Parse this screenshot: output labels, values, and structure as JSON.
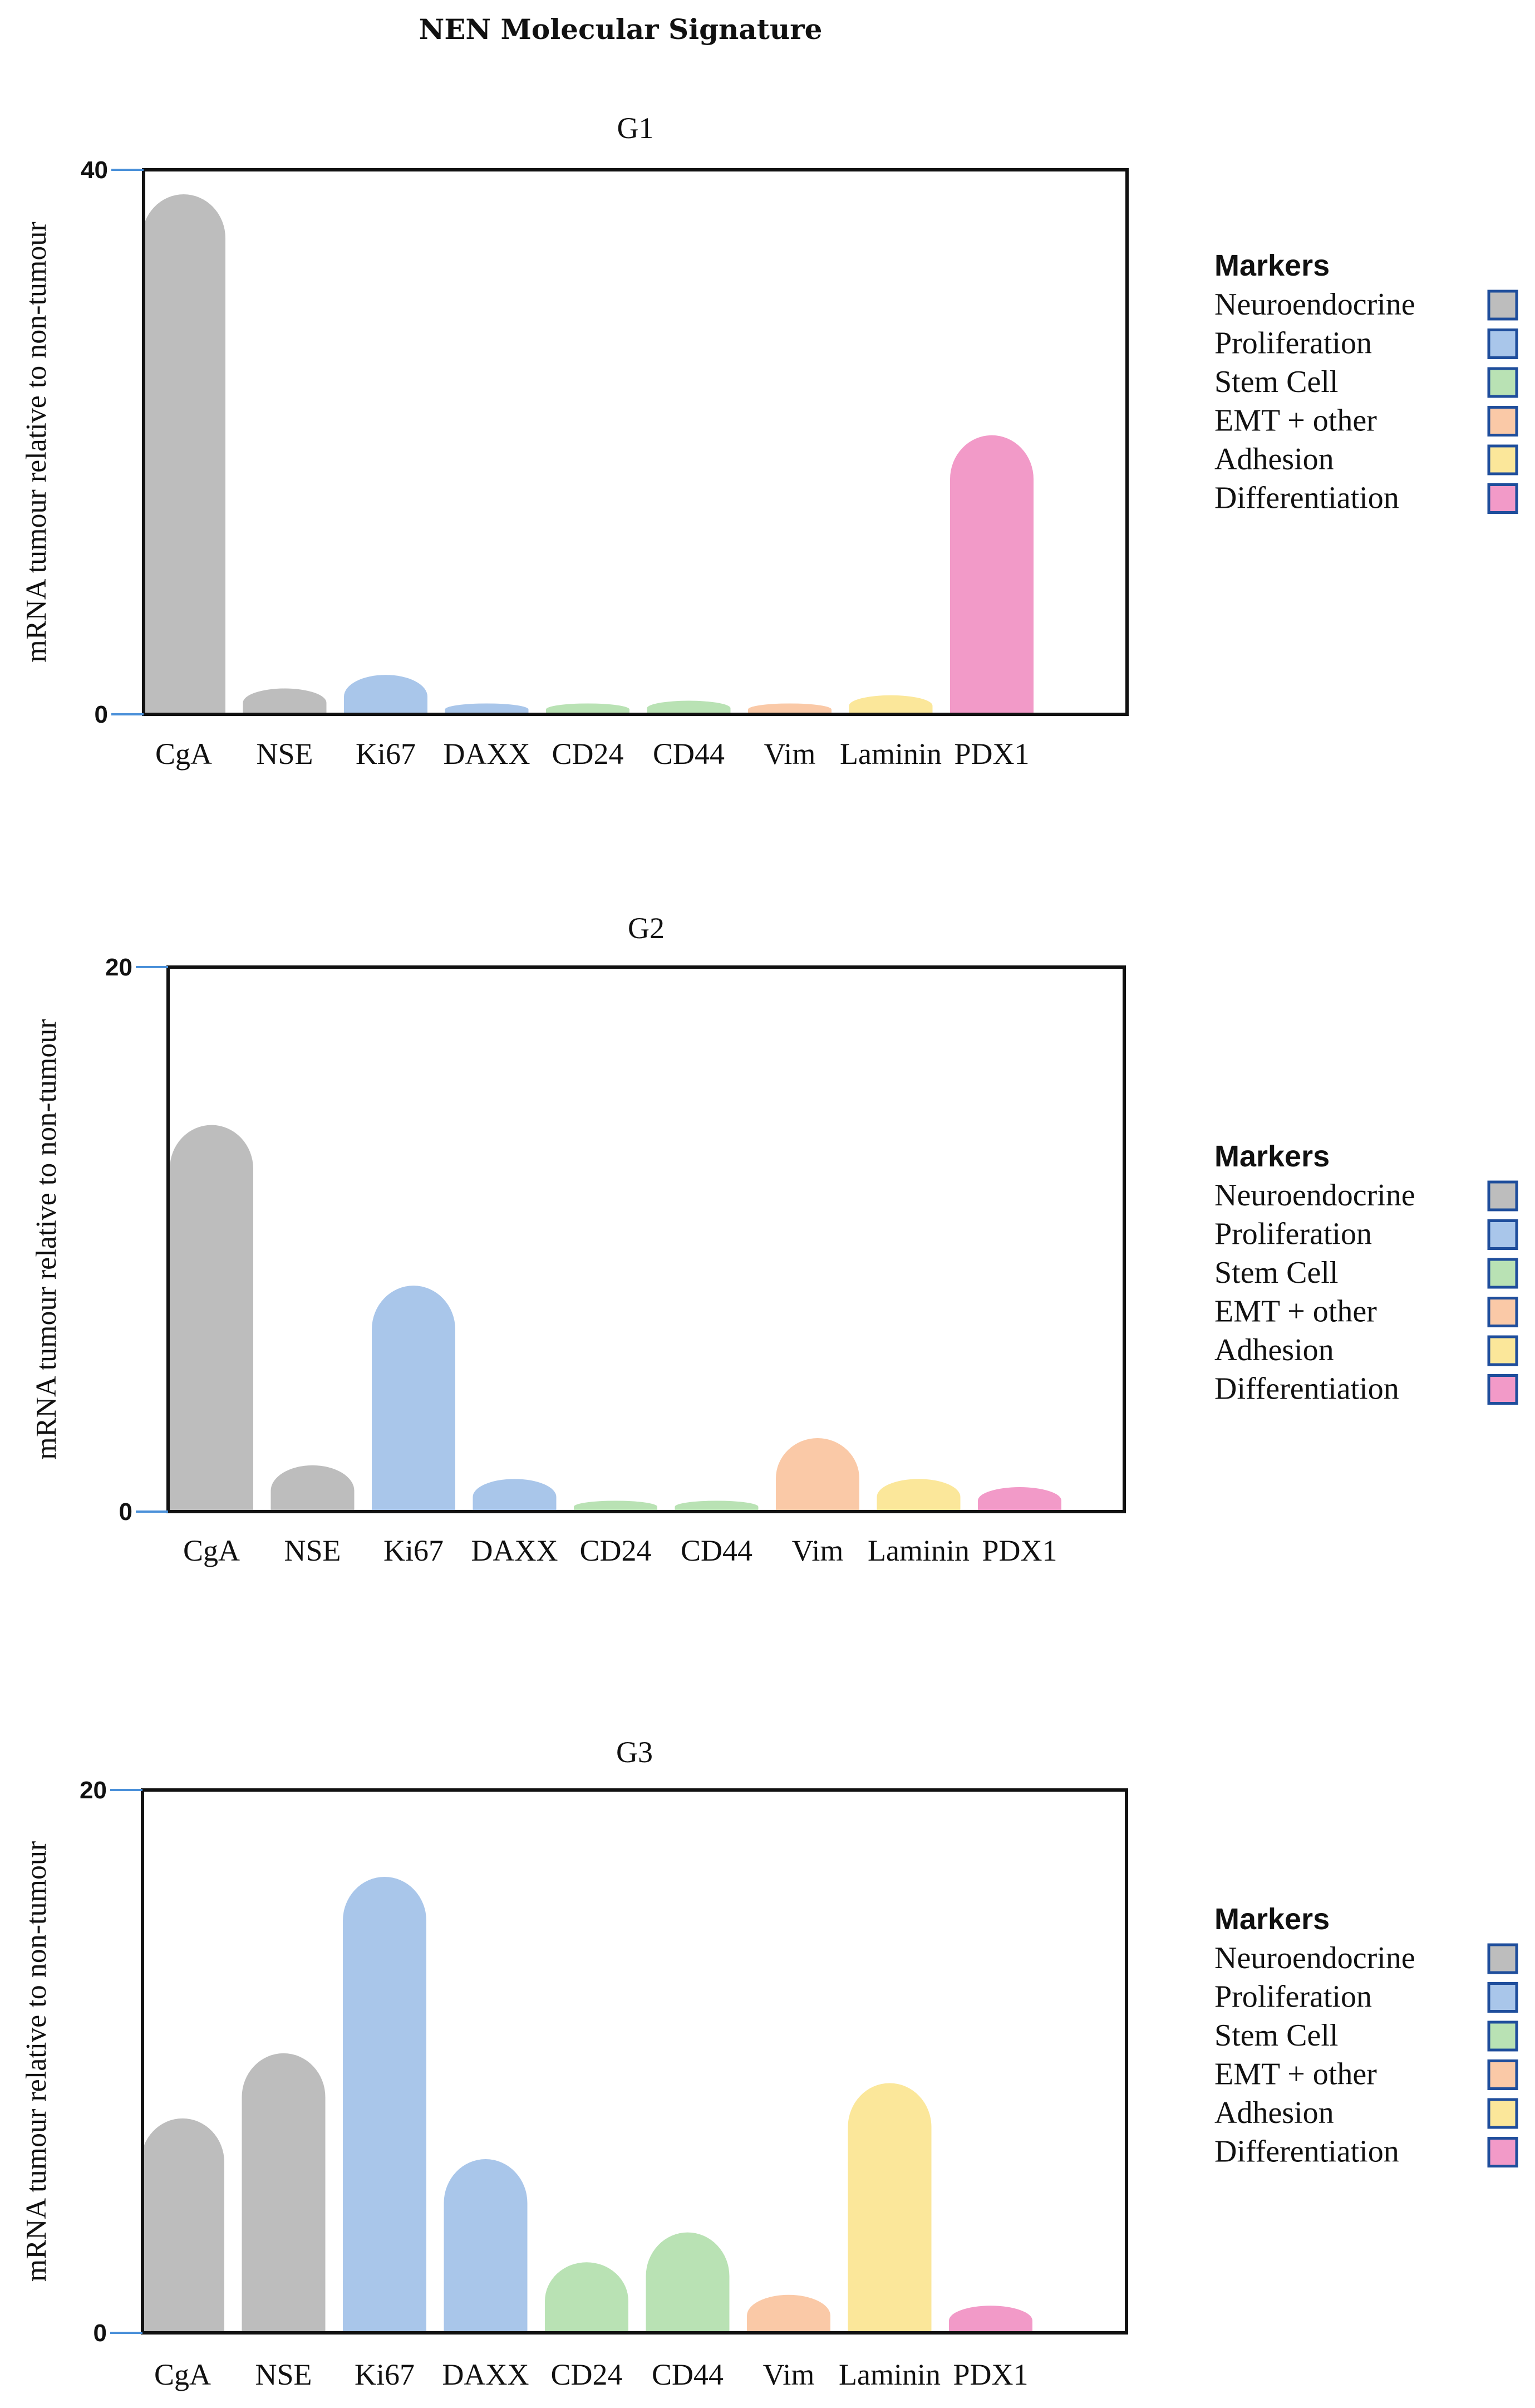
{
  "figure_title": "NEN Molecular Signature",
  "colors": {
    "Neuroendocrine": "#bdbdbd",
    "Proliferation": "#a9c6ea",
    "Stem Cell": "#b9e2b4",
    "EMT + other": "#fac9a7",
    "Adhesion": "#fbe79a",
    "Differentiation": "#f29ac8",
    "legend_border": "#1f4e9c",
    "axis_tick": "#4a90d9"
  },
  "legend": {
    "title": "Markers",
    "items": [
      "Neuroendocrine",
      "Proliferation",
      "Stem Cell",
      "EMT + other",
      "Adhesion",
      "Differentiation"
    ]
  },
  "chart_data": [
    {
      "type": "bar",
      "title": "G1",
      "ylabel": "mRNA tumour relative to non-tumour",
      "xlabel": "",
      "ylim": [
        0,
        40
      ],
      "yticks": [
        "0",
        "40"
      ],
      "categories": [
        "CgA",
        "NSE",
        "Ki67",
        "DAXX",
        "CD24",
        "CD44",
        "Vim",
        "Laminin",
        "PDX1"
      ],
      "groups": [
        "Neuroendocrine",
        "Neuroendocrine",
        "Proliferation",
        "Proliferation",
        "Stem Cell",
        "Stem Cell",
        "EMT + other",
        "Adhesion",
        "Differentiation"
      ],
      "values": [
        38.2,
        1.9,
        2.9,
        0.8,
        0.8,
        1.0,
        0.8,
        1.4,
        20.5
      ]
    },
    {
      "type": "bar",
      "title": "G2",
      "ylabel": "mRNA tumour relative to non-tumour",
      "xlabel": "",
      "ylim": [
        0,
        20
      ],
      "yticks": [
        "0",
        "20"
      ],
      "categories": [
        "CgA",
        "NSE",
        "Ki67",
        "DAXX",
        "CD24",
        "CD44",
        "Vim",
        "Laminin",
        "PDX1"
      ],
      "groups": [
        "Neuroendocrine",
        "Neuroendocrine",
        "Proliferation",
        "Proliferation",
        "Stem Cell",
        "Stem Cell",
        "EMT + other",
        "Adhesion",
        "Differentiation"
      ],
      "values": [
        14.2,
        1.7,
        8.3,
        1.2,
        0.4,
        0.4,
        2.7,
        1.2,
        0.9
      ]
    },
    {
      "type": "bar",
      "title": "G3",
      "ylabel": "mRNA tumour relative to non-tumour",
      "xlabel": "",
      "ylim": [
        0,
        20
      ],
      "yticks": [
        "0",
        "20"
      ],
      "categories": [
        "CgA",
        "NSE",
        "Ki67",
        "DAXX",
        "CD24",
        "CD44",
        "Vim",
        "Laminin",
        "PDX1"
      ],
      "groups": [
        "Neuroendocrine",
        "Neuroendocrine",
        "Proliferation",
        "Proliferation",
        "Stem Cell",
        "Stem Cell",
        "EMT + other",
        "Adhesion",
        "Differentiation"
      ],
      "values": [
        7.9,
        10.3,
        16.8,
        6.4,
        2.6,
        3.7,
        1.4,
        9.2,
        1.0
      ]
    }
  ]
}
